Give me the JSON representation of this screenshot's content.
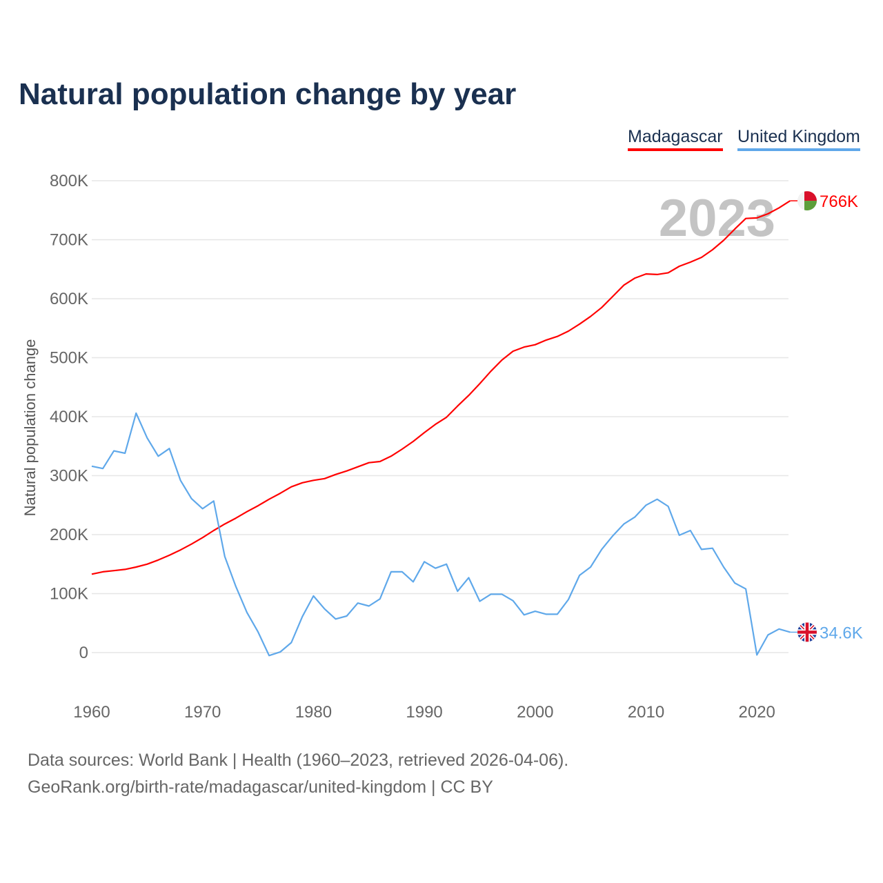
{
  "title": "Natural population change by year",
  "legend": [
    {
      "label": "Madagascar",
      "color": "#ff0000"
    },
    {
      "label": "United Kingdom",
      "color": "#5fa8ea"
    }
  ],
  "footer": {
    "line1": "Data sources: World Bank | Health (1960–2023, retrieved 2026-04-06).",
    "line2": "GeoRank.org/birth-rate/madagascar/united-kingdom | CC BY"
  },
  "chart_data": {
    "type": "line",
    "title": "Natural population change by year",
    "xlabel": "",
    "ylabel": "Natural population change",
    "xlim": [
      1960,
      2023
    ],
    "ylim": [
      -50000,
      800000
    ],
    "year_watermark": "2023",
    "x_ticks": [
      "1960",
      "1970",
      "1980",
      "1990",
      "2000",
      "2010",
      "2020"
    ],
    "y_ticks": [
      {
        "value": 0,
        "label": "0"
      },
      {
        "value": 100000,
        "label": "100K"
      },
      {
        "value": 200000,
        "label": "200K"
      },
      {
        "value": 300000,
        "label": "300K"
      },
      {
        "value": 400000,
        "label": "400K"
      },
      {
        "value": 500000,
        "label": "500K"
      },
      {
        "value": 600000,
        "label": "600K"
      },
      {
        "value": 700000,
        "label": "700K"
      },
      {
        "value": 800000,
        "label": "800K"
      }
    ],
    "grid": true,
    "legend_position": "top-right",
    "x_start": 1960,
    "series": [
      {
        "name": "Madagascar",
        "color": "#ff0000",
        "end_label": "766K",
        "flag": "madagascar-flag",
        "values": [
          133,
          137,
          139,
          141,
          145,
          150,
          157,
          165,
          174,
          184,
          195,
          207,
          218,
          228,
          239,
          249,
          260,
          270,
          281,
          288,
          292,
          295,
          302,
          308,
          315,
          322,
          324,
          333,
          345,
          358,
          373,
          387,
          399,
          418,
          436,
          456,
          477,
          496,
          511,
          518,
          522,
          530,
          536,
          545,
          557,
          570,
          585,
          604,
          623,
          635,
          642,
          641,
          644,
          655,
          662,
          670,
          683,
          699,
          718,
          736,
          737,
          744,
          754,
          766
        ]
      },
      {
        "name": "United Kingdom",
        "color": "#5fa8ea",
        "end_label": "34.6K",
        "flag": "uk-flag",
        "values": [
          316,
          312,
          342,
          338,
          406,
          364,
          333,
          346,
          292,
          261,
          244,
          257,
          163,
          112,
          68,
          35,
          -5,
          1,
          17,
          61,
          96,
          74,
          57,
          62,
          84,
          79,
          91,
          137,
          137,
          120,
          154,
          143,
          150,
          104,
          127,
          87,
          99,
          99,
          88,
          64,
          70,
          65,
          65,
          90,
          131,
          145,
          175,
          198,
          218,
          230,
          250,
          260,
          248,
          199,
          207,
          175,
          177,
          145,
          118,
          108,
          -4,
          30,
          40,
          34.6
        ]
      }
    ],
    "value_unit": "thousands"
  }
}
